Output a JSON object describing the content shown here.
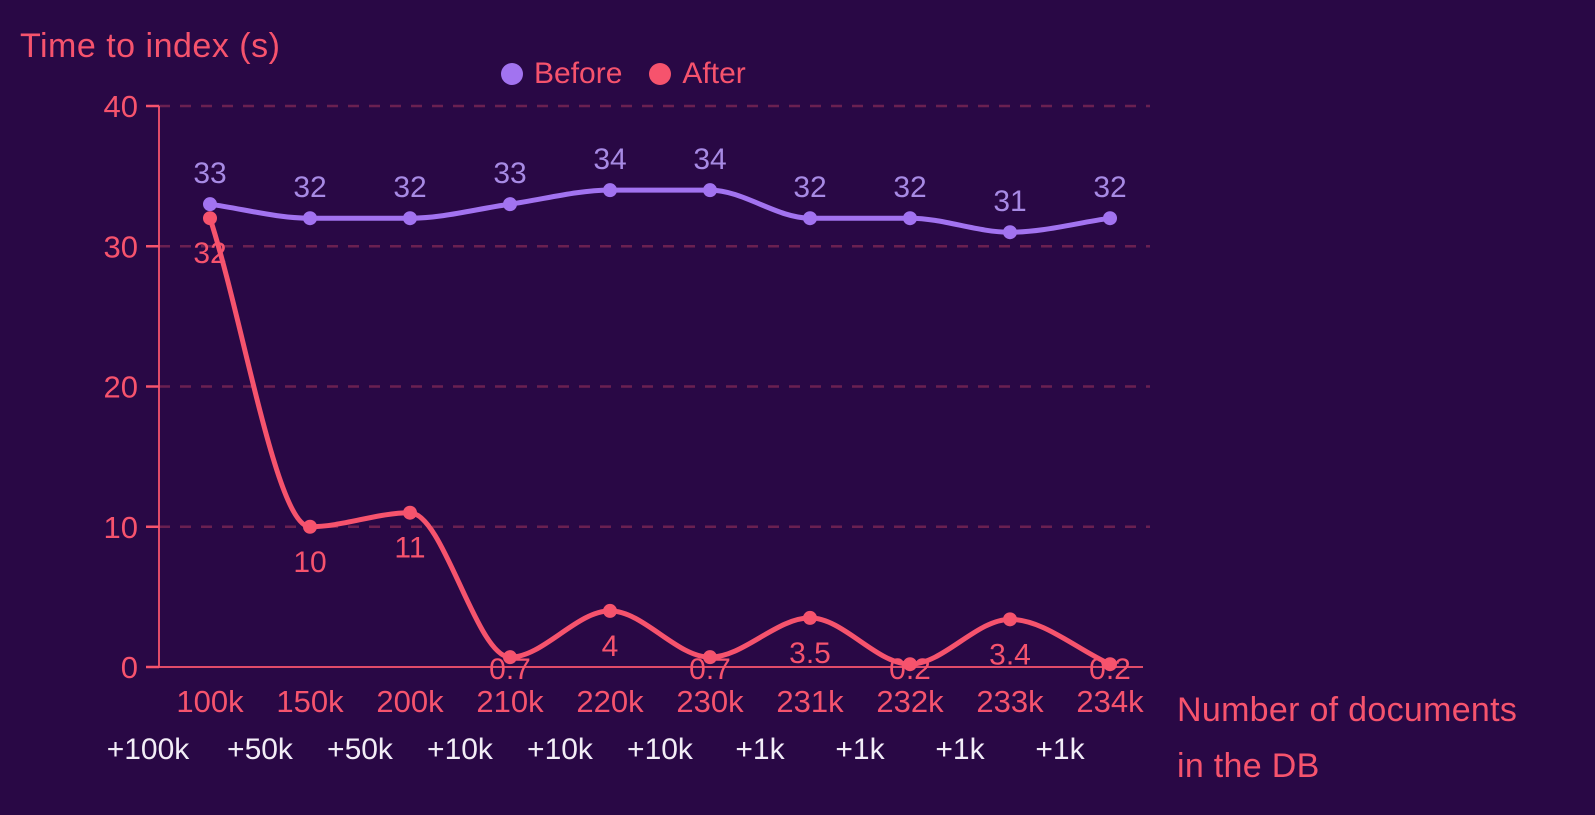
{
  "title": "Time to index (s)",
  "legend": {
    "items": [
      {
        "label": "Before",
        "color": "#a273f0"
      },
      {
        "label": "After",
        "color": "#f6536d"
      }
    ]
  },
  "axis_note": {
    "line1": "Number of documents",
    "line2": "in the DB"
  },
  "chart_data": {
    "type": "line",
    "title": "Time to index (s)",
    "ylabel": "Time to index (s)",
    "xlabel": "Number of documents in the DB",
    "categories": [
      "100k",
      "150k",
      "200k",
      "210k",
      "220k",
      "230k",
      "231k",
      "232k",
      "233k",
      "234k"
    ],
    "delta_labels": [
      "+100k",
      "+50k",
      "+50k",
      "+10k",
      "+10k",
      "+10k",
      "+1k",
      "+1k",
      "+1k",
      "+1k"
    ],
    "y_ticks": [
      0,
      10,
      20,
      30,
      40
    ],
    "ylim": [
      0,
      40
    ],
    "grid": "horizontal-dashed",
    "legend_position": "top-center",
    "series": [
      {
        "name": "Before",
        "color": "#a273f0",
        "label_color": "#a78ae4",
        "point_labels": "above",
        "values": [
          33,
          32,
          32,
          33,
          34,
          34,
          32,
          32,
          31,
          32
        ]
      },
      {
        "name": "After",
        "color": "#f6536d",
        "label_color": "#f6536d",
        "point_labels": "below",
        "values": [
          32,
          10,
          11,
          0.7,
          4,
          0.7,
          3.5,
          0.2,
          3.4,
          0.2
        ]
      }
    ]
  },
  "colors": {
    "background": "#290845",
    "accent_red": "#f6536d",
    "accent_purple": "#a273f0",
    "grid_line": "rgba(246,83,109,0.32)",
    "axis_line": "#f6536d",
    "delta_text": "#f2edf7"
  }
}
